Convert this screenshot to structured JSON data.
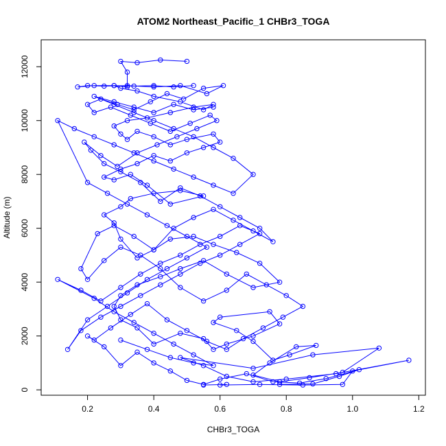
{
  "chart_data": {
    "type": "line",
    "title": "ATOM2 Northeast_Pacific_1 CHBr3_TOGA",
    "xlabel": "CHBr3_TOGA",
    "ylabel": "Altitude (m)",
    "xlim": [
      0.06,
      1.22
    ],
    "ylim": [
      -200,
      13000
    ],
    "xticks": [
      0.2,
      0.4,
      0.6,
      0.8,
      1.0,
      1.2
    ],
    "xtick_labels": [
      "0.2",
      "0.4",
      "0.6",
      "0.8",
      "1.0",
      "1.2"
    ],
    "yticks": [
      0,
      2000,
      4000,
      6000,
      8000,
      10000,
      12000
    ],
    "ytick_labels": [
      "0",
      "2000",
      "4000",
      "6000",
      "8000",
      "10000",
      "12000"
    ],
    "grid": false,
    "color": "#0000ff",
    "marker": "open-circle",
    "series": [
      {
        "x": [
          0.55,
          0.62,
          0.6,
          0.72,
          0.85,
          0.97,
          1.0,
          1.17,
          0.95,
          0.8,
          0.7,
          0.62,
          0.55,
          0.48,
          0.7,
          0.88,
          1.08,
          0.97,
          0.87,
          0.78,
          0.7,
          0.75,
          0.83,
          0.89,
          0.81,
          0.76,
          0.7,
          0.65,
          0.58,
          0.6,
          0.75,
          0.78,
          0.7,
          0.62,
          0.58,
          0.55,
          0.48,
          0.4,
          0.35,
          0.3,
          0.28,
          0.3,
          0.35,
          0.42,
          0.48,
          0.55,
          0.62,
          0.7,
          0.78,
          0.72,
          0.65,
          0.58,
          0.52,
          0.45,
          0.4,
          0.35,
          0.3,
          0.28,
          0.25,
          0.3,
          0.33,
          0.4,
          0.48,
          0.55,
          0.45,
          0.38,
          0.33,
          0.28,
          0.25,
          0.3,
          0.35,
          0.4,
          0.45,
          0.5,
          0.55,
          0.6,
          0.58,
          0.5,
          0.45,
          0.4,
          0.35,
          0.32,
          0.3,
          0.28,
          0.32,
          0.38,
          0.45,
          0.52,
          0.58,
          0.55,
          0.48,
          0.4,
          0.35,
          0.3,
          0.28,
          0.32,
          0.32,
          0.3,
          0.35,
          0.42,
          0.5
        ],
        "y": [
          180,
          200,
          180,
          200,
          180,
          200,
          700,
          1100,
          600,
          400,
          300,
          500,
          900,
          1200,
          800,
          1300,
          1550,
          650,
          450,
          300,
          550,
          1000,
          1600,
          1650,
          1300,
          1100,
          1800,
          2200,
          2500,
          2700,
          2900,
          2450,
          2000,
          1700,
          1500,
          1900,
          2100,
          1700,
          2300,
          2600,
          3100,
          3500,
          3900,
          4200,
          4500,
          4800,
          4300,
          3800,
          4000,
          4700,
          5100,
          5400,
          5700,
          5600,
          5200,
          4900,
          5600,
          6200,
          6500,
          6800,
          7100,
          7300,
          7400,
          7200,
          6900,
          7600,
          8000,
          7800,
          7900,
          8200,
          8400,
          8700,
          8500,
          8800,
          9000,
          9200,
          9500,
          9300,
          9100,
          9400,
          9600,
          9300,
          9500,
          9800,
          10000,
          10100,
          10300,
          10500,
          10600,
          10400,
          10700,
          10900,
          11100,
          11200,
          11300,
          11250,
          11800,
          12200,
          12150,
          12250,
          12200
        ]
      },
      {
        "x": [
          0.78,
          0.88,
          0.96,
          1.02,
          0.92,
          0.84,
          0.76,
          0.68,
          0.6,
          0.55,
          0.5,
          0.45,
          0.4,
          0.35,
          0.3,
          0.25,
          0.2,
          0.22,
          0.27,
          0.33,
          0.38,
          0.44,
          0.5,
          0.56,
          0.62,
          0.67,
          0.73,
          0.79,
          0.85,
          0.8,
          0.74,
          0.68,
          0.62,
          0.55,
          0.48,
          0.42,
          0.36,
          0.3,
          0.25,
          0.2,
          0.18,
          0.23,
          0.28,
          0.34,
          0.4,
          0.46,
          0.52,
          0.58,
          0.64,
          0.7,
          0.76,
          0.72,
          0.66,
          0.6,
          0.54,
          0.48,
          0.42,
          0.36,
          0.3,
          0.25,
          0.21,
          0.19,
          0.24,
          0.29,
          0.35,
          0.41,
          0.47,
          0.53,
          0.59,
          0.57,
          0.51,
          0.45,
          0.39,
          0.33,
          0.27,
          0.22,
          0.2,
          0.24,
          0.29,
          0.34,
          0.39,
          0.44,
          0.49,
          0.55,
          0.61,
          0.56,
          0.48,
          0.4,
          0.32,
          0.25,
          0.2,
          0.17,
          0.22,
          0.28,
          0.34,
          0.4,
          0.46,
          0.52
        ],
        "y": [
          200,
          220,
          500,
          750,
          420,
          250,
          300,
          600,
          400,
          200,
          350,
          700,
          1000,
          1400,
          900,
          1600,
          2000,
          1850,
          2300,
          2800,
          3200,
          2600,
          2200,
          1800,
          1500,
          1900,
          2300,
          2700,
          3100,
          3500,
          3900,
          4300,
          3700,
          3300,
          3800,
          4500,
          5000,
          5300,
          4800,
          4100,
          4500,
          5800,
          6100,
          5700,
          5200,
          6000,
          6400,
          6700,
          6300,
          5900,
          5500,
          6000,
          6400,
          6800,
          7200,
          7500,
          7000,
          7700,
          8100,
          8400,
          8900,
          9200,
          8700,
          8300,
          8800,
          9100,
          9400,
          9700,
          10000,
          10200,
          9900,
          9600,
          9900,
          10200,
          10500,
          10300,
          10600,
          10800,
          10600,
          10400,
          10700,
          11000,
          10800,
          11200,
          11300,
          11000,
          11300,
          11250,
          11300,
          11280,
          11300,
          11250,
          11300,
          11300,
          11280,
          11300,
          11250,
          11300
        ]
      },
      {
        "x": [
          0.3,
          0.38,
          0.45,
          0.52,
          0.58,
          0.52,
          0.46,
          0.4,
          0.34,
          0.28,
          0.22,
          0.11,
          0.18,
          0.24,
          0.3,
          0.36,
          0.42,
          0.48,
          0.54,
          0.6,
          0.66,
          0.72,
          0.66,
          0.6,
          0.54,
          0.48,
          0.42,
          0.36,
          0.3,
          0.24,
          0.18,
          0.14,
          0.2,
          0.26,
          0.32,
          0.38,
          0.44,
          0.5,
          0.56,
          0.5,
          0.44,
          0.38,
          0.32,
          0.26,
          0.2,
          0.11,
          0.16,
          0.22,
          0.28,
          0.34,
          0.4,
          0.46,
          0.52,
          0.58,
          0.64,
          0.7,
          0.64,
          0.58,
          0.52,
          0.46,
          0.4,
          0.34,
          0.28,
          0.22,
          0.28,
          0.34,
          0.4,
          0.46,
          0.52,
          0.58
        ],
        "y": [
          1850,
          1500,
          1200,
          1000,
          900,
          1300,
          1700,
          2100,
          2500,
          2900,
          3400,
          4100,
          3700,
          3300,
          3800,
          4300,
          4700,
          5000,
          5400,
          5700,
          6100,
          5800,
          5400,
          5000,
          4700,
          4300,
          3900,
          3500,
          3100,
          2700,
          2200,
          1500,
          2600,
          3100,
          3600,
          4100,
          4500,
          4900,
          5300,
          5700,
          6100,
          6500,
          6900,
          7300,
          7700,
          10000,
          9700,
          9400,
          9100,
          8800,
          8500,
          8200,
          7900,
          7600,
          7300,
          8000,
          8600,
          9000,
          9400,
          9700,
          10000,
          10300,
          10600,
          10900,
          10700,
          10500,
          10300,
          10600,
          10400,
          10500
        ]
      }
    ]
  }
}
